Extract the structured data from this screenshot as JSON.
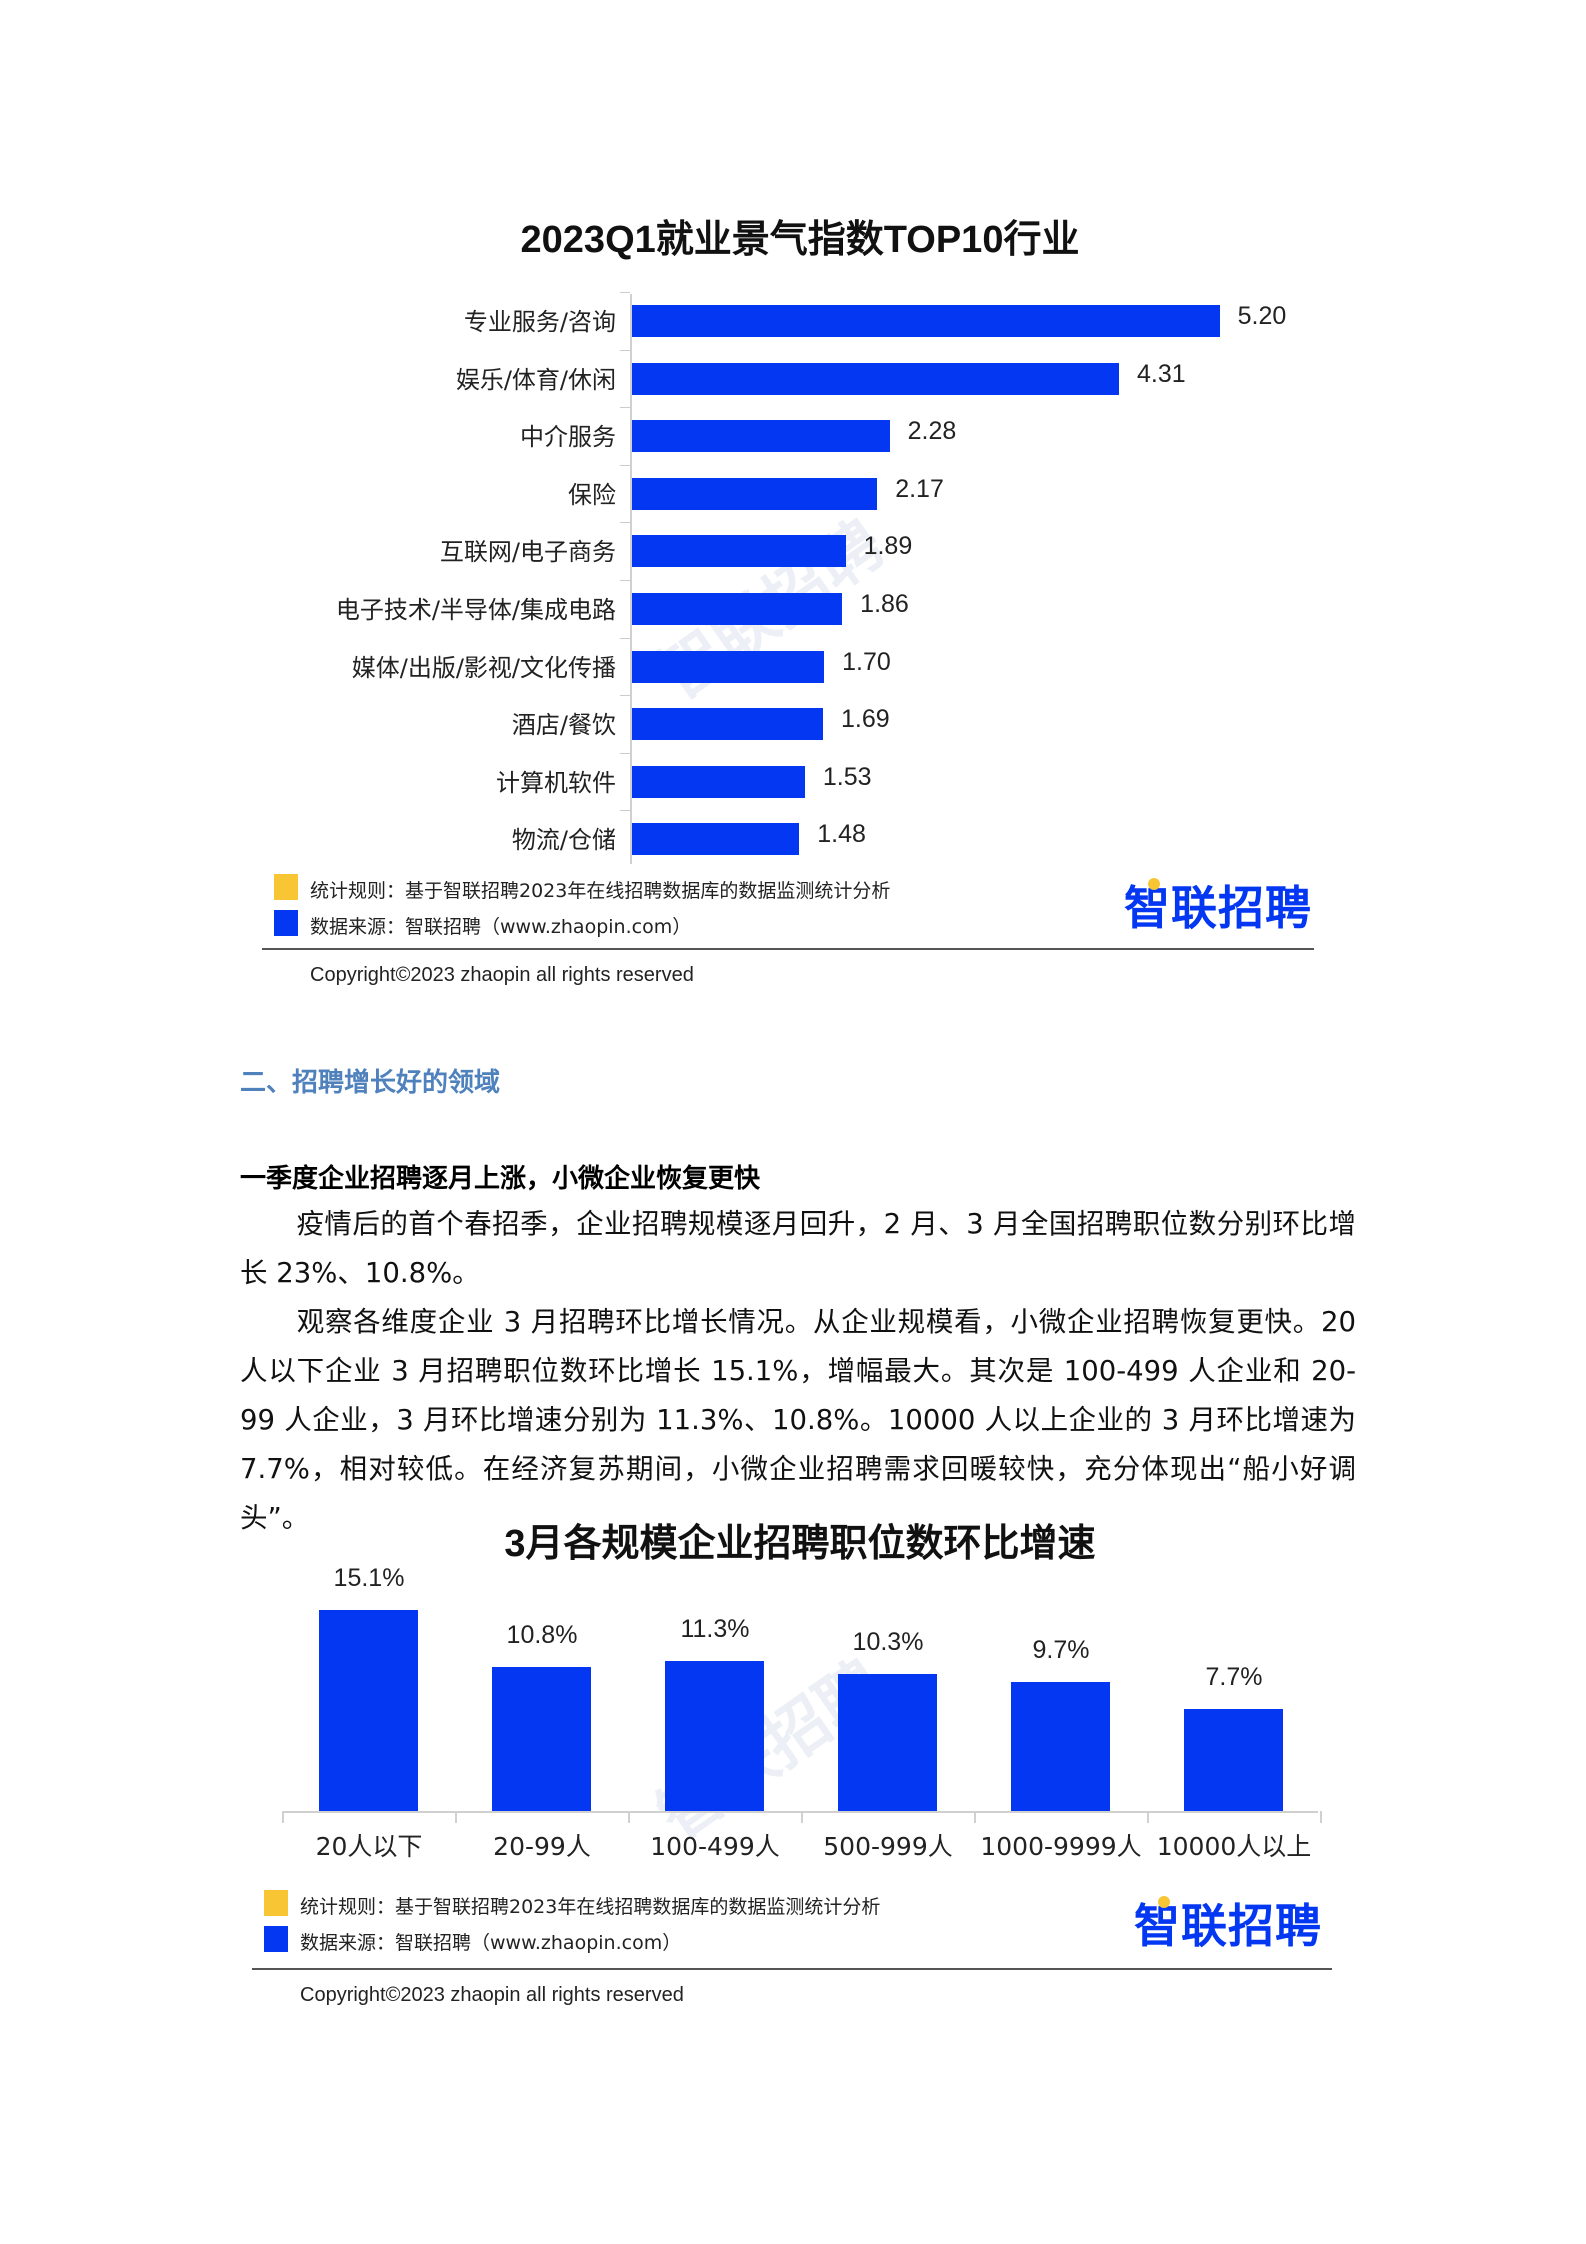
{
  "chart1": {
    "title": "2023Q1就业景气指数TOP10行业",
    "watermark": "智联招聘"
  },
  "legend": {
    "rule_label": "统计规则：基于智联招聘2023年在线招聘数据库的数据监测统计分析",
    "source_label": "数据来源：智联招聘（www.zhaopin.com）",
    "rule_color": "#f8c534",
    "source_color": "#0437f2",
    "logo_text": "智联招聘",
    "copyright": "Copyright©2023 zhaopin all rights reserved"
  },
  "section": {
    "heading": "二、招聘增长好的领域",
    "subheading": "一季度企业招聘逐月上涨，小微企业恢复更快",
    "paragraphs": [
      "疫情后的首个春招季，企业招聘规模逐月回升，2 月、3 月全国招聘职位数分别环比增长 23%、10.8%。",
      "观察各维度企业 3 月招聘环比增长情况。从企业规模看，小微企业招聘恢复更快。20 人以下企业 3 月招聘职位数环比增长 15.1%，增幅最大。其次是 100-499 人企业和 20-99 人企业，3 月环比增速分别为 11.3%、10.8%。10000 人以上企业的 3 月环比增速为 7.7%，相对较低。在经济复苏期间，小微企业招聘需求回暖较快，充分体现出“船小好调头”。"
    ]
  },
  "chart2": {
    "title": "3月各规模企业招聘职位数环比增速",
    "watermark": "智联招聘"
  },
  "colors": {
    "bar": "#0437f2",
    "section_heading": "#4f81bd",
    "legend_yellow": "#f8c534"
  },
  "chart_data": [
    {
      "type": "bar",
      "orientation": "horizontal",
      "title": "2023Q1就业景气指数TOP10行业",
      "categories": [
        "专业服务/咨询",
        "娱乐/体育/休闲",
        "中介服务",
        "保险",
        "互联网/电子商务",
        "电子技术/半导体/集成电路",
        "媒体/出版/影视/文化传播",
        "酒店/餐饮",
        "计算机软件",
        "物流/仓储"
      ],
      "values": [
        5.2,
        4.31,
        2.28,
        2.17,
        1.89,
        1.86,
        1.7,
        1.69,
        1.53,
        1.48
      ],
      "value_labels": [
        "5.20",
        "4.31",
        "2.28",
        "2.17",
        "1.89",
        "1.86",
        "1.70",
        "1.69",
        "1.53",
        "1.48"
      ],
      "xlabel": "",
      "ylabel": "",
      "grid": false,
      "legend": [
        "统计规则：基于智联招聘2023年在线招聘数据库的数据监测统计分析",
        "数据来源：智联招聘（www.zhaopin.com）"
      ],
      "legend_position": "bottom-left"
    },
    {
      "type": "bar",
      "orientation": "vertical",
      "title": "3月各规模企业招聘职位数环比增速",
      "categories": [
        "20人以下",
        "20-99人",
        "100-499人",
        "500-999人",
        "1000-9999人",
        "10000人以上"
      ],
      "values": [
        15.1,
        10.8,
        11.3,
        10.3,
        9.7,
        7.7
      ],
      "value_labels": [
        "15.1%",
        "10.8%",
        "11.3%",
        "10.3%",
        "9.7%",
        "7.7%"
      ],
      "xlabel": "",
      "ylabel": "",
      "unit": "%",
      "grid": false,
      "legend": [
        "统计规则：基于智联招聘2023年在线招聘数据库的数据监测统计分析",
        "数据来源：智联招聘（www.zhaopin.com）"
      ],
      "legend_position": "bottom-left"
    }
  ]
}
